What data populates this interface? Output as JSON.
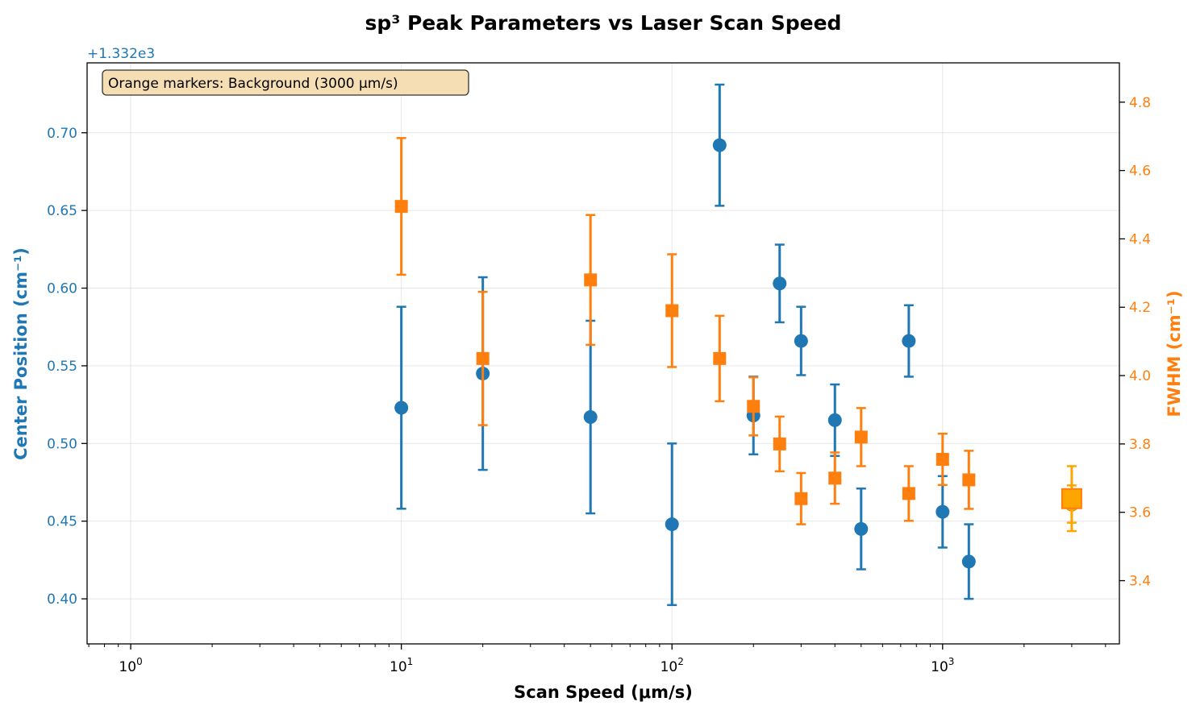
{
  "chart_data": {
    "type": "scatter",
    "title": "sp³ Peak Parameters vs Laser Scan Speed",
    "xlabel": "Scan Speed (μm/s)",
    "ylabel_left": "Center Position (cm⁻¹)",
    "ylabel_right": "FWHM (cm⁻¹)",
    "left_offset_text": "+1.332e3",
    "x_scale": "log",
    "xlim": [
      0.69,
      4500
    ],
    "ylim_left": [
      0.371,
      0.745
    ],
    "ylim_right": [
      3.215,
      4.915
    ],
    "x_ticks": [
      {
        "value": 1,
        "base": "10",
        "exp": "0"
      },
      {
        "value": 10,
        "base": "10",
        "exp": "1"
      },
      {
        "value": 100,
        "base": "10",
        "exp": "2"
      },
      {
        "value": 1000,
        "base": "10",
        "exp": "3"
      }
    ],
    "y_ticks_left": [
      {
        "value": 0.4,
        "label": "0.40"
      },
      {
        "value": 0.45,
        "label": "0.45"
      },
      {
        "value": 0.5,
        "label": "0.50"
      },
      {
        "value": 0.55,
        "label": "0.55"
      },
      {
        "value": 0.6,
        "label": "0.60"
      },
      {
        "value": 0.65,
        "label": "0.65"
      },
      {
        "value": 0.7,
        "label": "0.70"
      }
    ],
    "y_ticks_right": [
      {
        "value": 3.4,
        "label": "3.4"
      },
      {
        "value": 3.6,
        "label": "3.6"
      },
      {
        "value": 3.8,
        "label": "3.8"
      },
      {
        "value": 4.0,
        "label": "4.0"
      },
      {
        "value": 4.2,
        "label": "4.2"
      },
      {
        "value": 4.4,
        "label": "4.4"
      },
      {
        "value": 4.6,
        "label": "4.6"
      },
      {
        "value": 4.8,
        "label": "4.8"
      }
    ],
    "grid": true,
    "legend_location": "top-left",
    "annotation": "Orange markers: Background (3000 μm/s)",
    "series": [
      {
        "name": "Center Position",
        "axis": "left",
        "color": "#1f77b4",
        "marker": "circle",
        "x": [
          10,
          20,
          50,
          100,
          150,
          200,
          250,
          300,
          400,
          500,
          750,
          1000,
          1250
        ],
        "y": [
          0.523,
          0.545,
          0.517,
          0.448,
          0.692,
          0.518,
          0.603,
          0.566,
          0.515,
          0.445,
          0.566,
          0.456,
          0.424
        ],
        "err": [
          0.065,
          0.062,
          0.062,
          0.052,
          0.039,
          0.025,
          0.025,
          0.022,
          0.023,
          0.026,
          0.023,
          0.023,
          0.024
        ]
      },
      {
        "name": "FWHM",
        "axis": "right",
        "color": "#ff7f0e",
        "marker": "square",
        "x": [
          10,
          20,
          50,
          100,
          150,
          200,
          250,
          300,
          400,
          500,
          750,
          1000,
          1250
        ],
        "y": [
          4.495,
          4.05,
          4.28,
          4.19,
          4.05,
          3.91,
          3.8,
          3.64,
          3.7,
          3.82,
          3.655,
          3.755,
          3.695
        ],
        "err": [
          0.2,
          0.195,
          0.19,
          0.165,
          0.125,
          0.085,
          0.08,
          0.075,
          0.075,
          0.085,
          0.08,
          0.075,
          0.085
        ]
      },
      {
        "name": "Background Center",
        "axis": "left",
        "color": "#ffa500",
        "marker": "circle",
        "x": [
          3000
        ],
        "y": [
          0.461
        ],
        "err": [
          0.012
        ]
      },
      {
        "name": "Background FWHM",
        "axis": "right",
        "color": "#ffa500",
        "marker": "square",
        "x": [
          3000
        ],
        "y": [
          3.64
        ],
        "err": [
          0.095
        ]
      }
    ]
  }
}
